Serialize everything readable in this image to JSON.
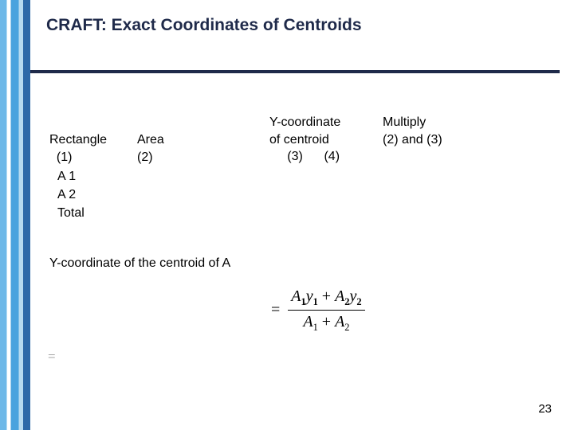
{
  "title": "CRAFT: Exact Coordinates of Centroids",
  "table": {
    "columns": {
      "c1": {
        "label": "Rectangle",
        "num": "(1)"
      },
      "c2": {
        "label": "Area",
        "num": "(2)"
      },
      "c3": {
        "label_line1": "Y-coordinate",
        "label_line2": "of centroid",
        "num": "(3)"
      },
      "c4": {
        "label_line1": "Multiply",
        "label_line2": "(2) and (3)",
        "num": "(4)"
      }
    },
    "rows": [
      "A 1",
      " A 2",
      "Total"
    ]
  },
  "centroid_label": "Y-coordinate of the centroid of A",
  "formula": {
    "eq": "=",
    "num_A1": "A",
    "num_A1_sub": "1",
    "num_y1": "y",
    "num_y1_sub": "1",
    "plus": " + ",
    "num_A2": "A",
    "num_A2_sub": "2",
    "num_y2": "y",
    "num_y2_sub": "2",
    "den_A1": "A",
    "den_A1_sub": "1",
    "den_plus": " + ",
    "den_A2": "A",
    "den_A2_sub": "2"
  },
  "stray_eq": "=",
  "page_number": "23",
  "colors": {
    "title": "#1f2a4a",
    "rule": "#1f2a4a",
    "text": "#000000",
    "stray": "#999999",
    "stripe": [
      "#6db8e8",
      "#ffffff",
      "#4aa3de",
      "#b7dbf0",
      "#2e6aa8"
    ]
  }
}
